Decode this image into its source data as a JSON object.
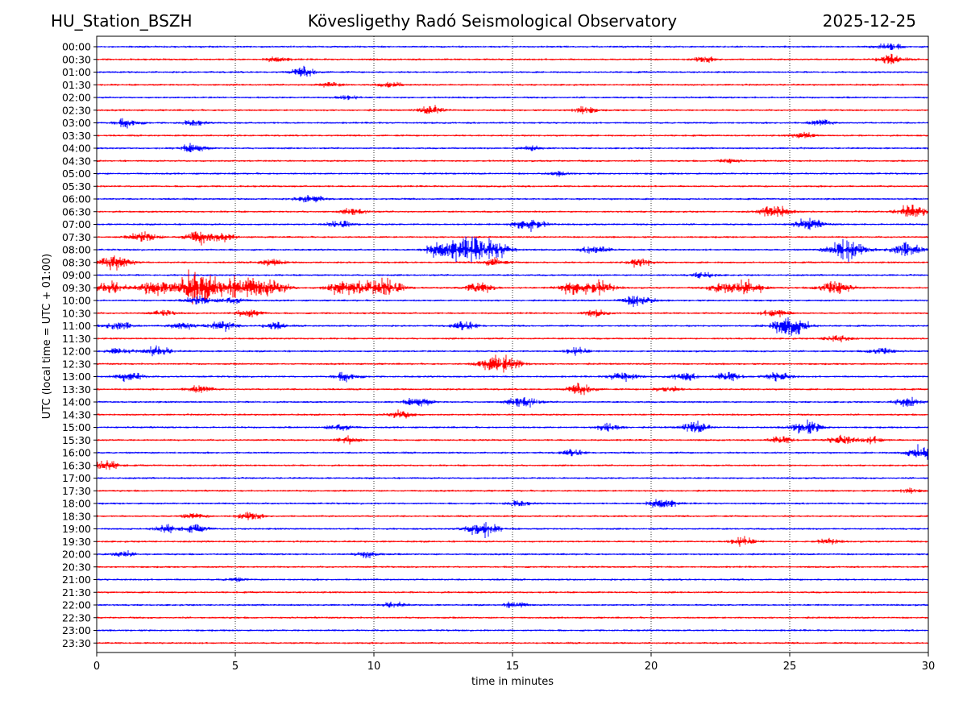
{
  "header": {
    "station": "HU_Station_BSZH",
    "observatory": "Kövesligethy Radó Seismological Observatory",
    "date": "2025-12-25"
  },
  "chart_data": {
    "type": "line",
    "title": "Kövesligethy Radó Seismological Observatory",
    "xlabel": "time in minutes",
    "ylabel": "UTC (local time = UTC + 01:00)",
    "xlim": [
      0,
      30
    ],
    "xticks": [
      0,
      5,
      10,
      15,
      20,
      25,
      30
    ],
    "vertical_gridlines_at": [
      5,
      10,
      15,
      20,
      25
    ],
    "grid": "vertical dotted",
    "trace_colors": [
      "#0000ff",
      "#ff0000"
    ],
    "rows": [
      {
        "label": "00:00",
        "color": "#0000ff",
        "events": [
          {
            "t": 28.6,
            "amp": 0.8
          }
        ]
      },
      {
        "label": "00:30",
        "color": "#ff0000",
        "events": [
          {
            "t": 6.5,
            "amp": 0.6
          },
          {
            "t": 21.9,
            "amp": 0.6
          },
          {
            "t": 28.6,
            "amp": 1.1
          }
        ]
      },
      {
        "label": "01:00",
        "color": "#0000ff",
        "events": [
          {
            "t": 7.5,
            "amp": 1.0
          }
        ]
      },
      {
        "label": "01:30",
        "color": "#ff0000",
        "events": [
          {
            "t": 8.4,
            "amp": 0.6
          },
          {
            "t": 10.6,
            "amp": 0.6
          }
        ]
      },
      {
        "label": "02:00",
        "color": "#0000ff",
        "events": [
          {
            "t": 9.0,
            "amp": 0.5
          }
        ]
      },
      {
        "label": "02:30",
        "color": "#ff0000",
        "events": [
          {
            "t": 12.1,
            "amp": 1.0
          },
          {
            "t": 17.6,
            "amp": 0.8
          }
        ]
      },
      {
        "label": "03:00",
        "color": "#0000ff",
        "events": [
          {
            "t": 1.1,
            "amp": 1.0
          },
          {
            "t": 3.5,
            "amp": 0.6
          },
          {
            "t": 26.1,
            "amp": 0.7
          }
        ]
      },
      {
        "label": "03:30",
        "color": "#ff0000",
        "events": [
          {
            "t": 25.5,
            "amp": 0.7
          }
        ]
      },
      {
        "label": "04:00",
        "color": "#0000ff",
        "events": [
          {
            "t": 3.5,
            "amp": 1.0
          },
          {
            "t": 15.7,
            "amp": 0.6
          }
        ]
      },
      {
        "label": "04:30",
        "color": "#ff0000",
        "events": [
          {
            "t": 22.8,
            "amp": 0.5
          }
        ]
      },
      {
        "label": "05:00",
        "color": "#0000ff",
        "events": [
          {
            "t": 16.7,
            "amp": 0.4
          }
        ]
      },
      {
        "label": "05:30",
        "color": "#ff0000",
        "events": []
      },
      {
        "label": "06:00",
        "color": "#0000ff",
        "events": [
          {
            "t": 7.7,
            "amp": 1.0
          }
        ]
      },
      {
        "label": "06:30",
        "color": "#ff0000",
        "events": [
          {
            "t": 9.3,
            "amp": 0.8
          },
          {
            "t": 24.5,
            "amp": 1.5
          },
          {
            "t": 29.4,
            "amp": 1.5
          }
        ]
      },
      {
        "label": "07:00",
        "color": "#0000ff",
        "events": [
          {
            "t": 8.8,
            "amp": 0.9
          },
          {
            "t": 15.6,
            "amp": 1.6
          },
          {
            "t": 25.7,
            "amp": 1.3
          }
        ]
      },
      {
        "label": "07:30",
        "color": "#ff0000",
        "events": [
          {
            "t": 1.7,
            "amp": 1.2
          },
          {
            "t": 3.7,
            "amp": 1.6
          },
          {
            "t": 4.6,
            "amp": 0.7
          }
        ]
      },
      {
        "label": "08:00",
        "color": "#0000ff",
        "events": [
          {
            "t": 12.4,
            "amp": 1.8
          },
          {
            "t": 13.2,
            "amp": 2.0
          },
          {
            "t": 13.8,
            "amp": 1.8
          },
          {
            "t": 14.5,
            "amp": 1.6
          },
          {
            "t": 18.0,
            "amp": 1.0
          },
          {
            "t": 26.8,
            "amp": 1.4
          },
          {
            "t": 27.2,
            "amp": 1.8
          },
          {
            "t": 29.2,
            "amp": 1.8
          }
        ]
      },
      {
        "label": "08:30",
        "color": "#ff0000",
        "events": [
          {
            "t": 0.7,
            "amp": 1.8
          },
          {
            "t": 6.3,
            "amp": 0.8
          },
          {
            "t": 14.3,
            "amp": 0.9
          },
          {
            "t": 19.6,
            "amp": 0.9
          }
        ]
      },
      {
        "label": "09:00",
        "color": "#0000ff",
        "events": [
          {
            "t": 21.9,
            "amp": 0.7
          }
        ]
      },
      {
        "label": "09:30",
        "color": "#ff0000",
        "events": [
          {
            "t": 0.5,
            "amp": 1.4
          },
          {
            "t": 2.1,
            "amp": 1.8
          },
          {
            "t": 3.3,
            "amp": 1.8
          },
          {
            "t": 3.7,
            "amp": 2.5
          },
          {
            "t": 4.5,
            "amp": 1.6
          },
          {
            "t": 5.2,
            "amp": 1.8
          },
          {
            "t": 5.8,
            "amp": 1.6
          },
          {
            "t": 6.5,
            "amp": 1.4
          },
          {
            "t": 8.8,
            "amp": 1.6
          },
          {
            "t": 9.6,
            "amp": 1.4
          },
          {
            "t": 10.5,
            "amp": 2.0
          },
          {
            "t": 13.8,
            "amp": 1.4
          },
          {
            "t": 17.2,
            "amp": 1.6
          },
          {
            "t": 18.1,
            "amp": 1.6
          },
          {
            "t": 22.7,
            "amp": 1.6
          },
          {
            "t": 23.6,
            "amp": 1.4
          },
          {
            "t": 26.6,
            "amp": 1.8
          }
        ]
      },
      {
        "label": "10:00",
        "color": "#0000ff",
        "events": [
          {
            "t": 3.7,
            "amp": 1.0
          },
          {
            "t": 4.9,
            "amp": 0.9
          },
          {
            "t": 19.5,
            "amp": 1.4
          }
        ]
      },
      {
        "label": "10:30",
        "color": "#ff0000",
        "events": [
          {
            "t": 2.4,
            "amp": 0.6
          },
          {
            "t": 5.5,
            "amp": 1.0
          },
          {
            "t": 18.0,
            "amp": 0.7
          },
          {
            "t": 24.5,
            "amp": 1.0
          }
        ]
      },
      {
        "label": "11:00",
        "color": "#0000ff",
        "events": [
          {
            "t": 0.8,
            "amp": 1.1
          },
          {
            "t": 3.1,
            "amp": 0.9
          },
          {
            "t": 4.5,
            "amp": 1.2
          },
          {
            "t": 6.4,
            "amp": 0.8
          },
          {
            "t": 13.3,
            "amp": 1.0
          },
          {
            "t": 24.8,
            "amp": 1.5
          },
          {
            "t": 25.2,
            "amp": 1.6
          }
        ]
      },
      {
        "label": "11:30",
        "color": "#ff0000",
        "events": [
          {
            "t": 26.7,
            "amp": 0.9
          }
        ]
      },
      {
        "label": "12:00",
        "color": "#0000ff",
        "events": [
          {
            "t": 0.8,
            "amp": 0.7
          },
          {
            "t": 2.2,
            "amp": 1.1
          },
          {
            "t": 17.3,
            "amp": 0.8
          },
          {
            "t": 28.3,
            "amp": 0.9
          }
        ]
      },
      {
        "label": "12:30",
        "color": "#ff0000",
        "events": [
          {
            "t": 14.2,
            "amp": 1.3
          },
          {
            "t": 14.8,
            "amp": 1.8
          }
        ]
      },
      {
        "label": "13:00",
        "color": "#0000ff",
        "events": [
          {
            "t": 1.2,
            "amp": 1.1
          },
          {
            "t": 9.0,
            "amp": 1.0
          },
          {
            "t": 19.0,
            "amp": 1.2
          },
          {
            "t": 21.2,
            "amp": 0.9
          },
          {
            "t": 22.8,
            "amp": 1.0
          },
          {
            "t": 24.6,
            "amp": 1.0
          }
        ]
      },
      {
        "label": "13:30",
        "color": "#ff0000",
        "events": [
          {
            "t": 3.7,
            "amp": 0.9
          },
          {
            "t": 17.5,
            "amp": 1.2
          },
          {
            "t": 20.6,
            "amp": 0.7
          }
        ]
      },
      {
        "label": "14:00",
        "color": "#0000ff",
        "events": [
          {
            "t": 11.6,
            "amp": 1.1
          },
          {
            "t": 15.4,
            "amp": 1.4
          },
          {
            "t": 29.2,
            "amp": 1.0
          }
        ]
      },
      {
        "label": "14:30",
        "color": "#ff0000",
        "events": [
          {
            "t": 11.0,
            "amp": 1.0
          }
        ]
      },
      {
        "label": "15:00",
        "color": "#0000ff",
        "events": [
          {
            "t": 8.8,
            "amp": 0.9
          },
          {
            "t": 18.5,
            "amp": 0.9
          },
          {
            "t": 21.6,
            "amp": 1.3
          },
          {
            "t": 25.6,
            "amp": 1.6
          }
        ]
      },
      {
        "label": "15:30",
        "color": "#ff0000",
        "events": [
          {
            "t": 9.1,
            "amp": 0.8
          },
          {
            "t": 24.7,
            "amp": 0.8
          },
          {
            "t": 26.9,
            "amp": 1.1
          },
          {
            "t": 28.0,
            "amp": 0.7
          }
        ]
      },
      {
        "label": "16:00",
        "color": "#0000ff",
        "events": [
          {
            "t": 17.2,
            "amp": 0.7
          },
          {
            "t": 29.8,
            "amp": 1.7
          }
        ]
      },
      {
        "label": "16:30",
        "color": "#ff0000",
        "events": [
          {
            "t": 0.3,
            "amp": 1.2
          }
        ]
      },
      {
        "label": "17:00",
        "color": "#0000ff",
        "events": []
      },
      {
        "label": "17:30",
        "color": "#ff0000",
        "events": [
          {
            "t": 29.3,
            "amp": 0.5
          }
        ]
      },
      {
        "label": "18:00",
        "color": "#0000ff",
        "events": [
          {
            "t": 15.2,
            "amp": 0.6
          },
          {
            "t": 20.4,
            "amp": 1.2
          }
        ]
      },
      {
        "label": "18:30",
        "color": "#ff0000",
        "events": [
          {
            "t": 3.5,
            "amp": 0.6
          },
          {
            "t": 5.5,
            "amp": 0.9
          }
        ]
      },
      {
        "label": "19:00",
        "color": "#0000ff",
        "events": [
          {
            "t": 2.5,
            "amp": 0.9
          },
          {
            "t": 3.6,
            "amp": 0.8
          },
          {
            "t": 13.9,
            "amp": 1.8
          }
        ]
      },
      {
        "label": "19:30",
        "color": "#ff0000",
        "events": [
          {
            "t": 23.3,
            "amp": 1.0
          },
          {
            "t": 26.4,
            "amp": 0.6
          }
        ]
      },
      {
        "label": "20:00",
        "color": "#0000ff",
        "events": [
          {
            "t": 0.9,
            "amp": 0.7
          },
          {
            "t": 9.8,
            "amp": 0.7
          }
        ]
      },
      {
        "label": "20:30",
        "color": "#ff0000",
        "events": []
      },
      {
        "label": "21:00",
        "color": "#0000ff",
        "events": [
          {
            "t": 5.0,
            "amp": 0.4
          }
        ]
      },
      {
        "label": "21:30",
        "color": "#ff0000",
        "events": []
      },
      {
        "label": "22:00",
        "color": "#0000ff",
        "events": [
          {
            "t": 10.7,
            "amp": 0.6
          },
          {
            "t": 15.1,
            "amp": 0.7
          }
        ]
      },
      {
        "label": "22:30",
        "color": "#ff0000",
        "events": []
      },
      {
        "label": "23:00",
        "color": "#0000ff",
        "events": []
      },
      {
        "label": "23:30",
        "color": "#ff0000",
        "events": []
      }
    ]
  }
}
